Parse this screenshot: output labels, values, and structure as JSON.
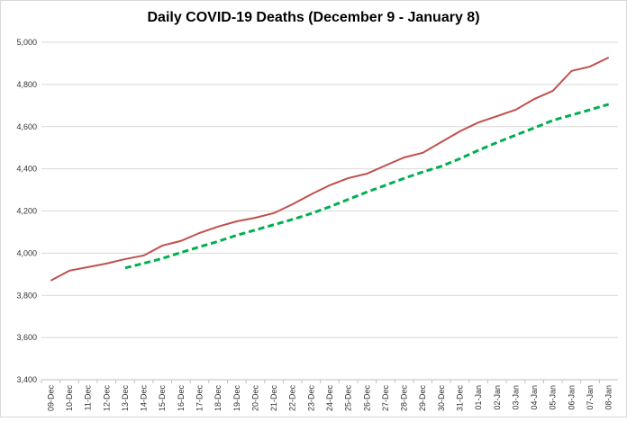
{
  "chart_data": {
    "type": "line",
    "title": "Daily COVID-19 Deaths (December 9 - January 8)",
    "categories": [
      "09-Dec",
      "10-Dec",
      "11-Dec",
      "12-Dec",
      "13-Dec",
      "14-Dec",
      "15-Dec",
      "16-Dec",
      "17-Dec",
      "18-Dec",
      "19-Dec",
      "20-Dec",
      "21-Dec",
      "22-Dec",
      "23-Dec",
      "24-Dec",
      "25-Dec",
      "26-Dec",
      "27-Dec",
      "28-Dec",
      "29-Dec",
      "30-Dec",
      "31-Dec",
      "01-Jan",
      "02-Jan",
      "03-Jan",
      "04-Jan",
      "05-Jan",
      "06-Jan",
      "07-Jan",
      "08-Jan"
    ],
    "series": [
      {
        "color": "#c0504d",
        "dashed": false,
        "values": [
          3870,
          3917,
          3934,
          3951,
          3972,
          3989,
          4036,
          4058,
          4096,
          4126,
          4151,
          4168,
          4190,
          4232,
          4279,
          4322,
          4356,
          4377,
          4416,
          4454,
          4476,
          4527,
          4578,
          4620,
          4650,
          4680,
          4731,
          4770,
          4864,
          4885,
          4928
        ]
      },
      {
        "color": "#00b050",
        "dashed": true,
        "values": [
          null,
          null,
          null,
          null,
          3930,
          3952,
          3975,
          4003,
          4030,
          4056,
          4085,
          4110,
          4135,
          4160,
          4188,
          4220,
          4255,
          4290,
          4322,
          4355,
          4385,
          4412,
          4448,
          4488,
          4525,
          4560,
          4594,
          4630,
          4655,
          4680,
          4706
        ]
      }
    ],
    "ylim": [
      3400,
      5000
    ],
    "yticks": [
      {
        "value": 3400,
        "label": "3,400"
      },
      {
        "value": 3600,
        "label": "3,600"
      },
      {
        "value": 3800,
        "label": "3,800"
      },
      {
        "value": 4000,
        "label": "4,000"
      },
      {
        "value": 4200,
        "label": "4,200"
      },
      {
        "value": 4400,
        "label": "4,400"
      },
      {
        "value": 4600,
        "label": "4,600"
      },
      {
        "value": 4800,
        "label": "4,800"
      },
      {
        "value": 5000,
        "label": "5,000"
      }
    ],
    "grid": true
  }
}
